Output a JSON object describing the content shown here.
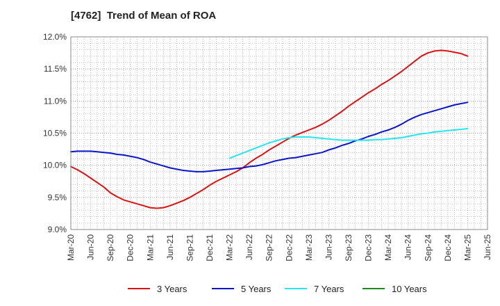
{
  "title": "[4762]  Trend of Mean of ROA",
  "chart_data": {
    "type": "line",
    "title": "[4762]  Trend of Mean of ROA",
    "ylim": [
      9.0,
      12.0
    ],
    "y_ticks": [
      "9.0%",
      "9.5%",
      "10.0%",
      "10.5%",
      "11.0%",
      "11.5%",
      "12.0%"
    ],
    "x_ticks": [
      "Mar-20",
      "Jun-20",
      "Sep-20",
      "Dec-20",
      "Mar-21",
      "Jun-21",
      "Sep-21",
      "Dec-21",
      "Mar-22",
      "Jun-22",
      "Sep-22",
      "Dec-22",
      "Mar-23",
      "Jun-23",
      "Sep-23",
      "Dec-23",
      "Mar-24",
      "Jun-24",
      "Sep-24",
      "Dec-24",
      "Mar-25",
      "Jun-25"
    ],
    "grid": true,
    "legend_position": "bottom",
    "series": [
      {
        "name": "3 Years",
        "color": "#dd1111",
        "points": [
          [
            "Mar-20",
            9.98
          ],
          [
            "Apr-20",
            9.93
          ],
          [
            "May-20",
            9.87
          ],
          [
            "Jun-20",
            9.8
          ],
          [
            "Jul-20",
            9.73
          ],
          [
            "Aug-20",
            9.66
          ],
          [
            "Sep-20",
            9.57
          ],
          [
            "Oct-20",
            9.51
          ],
          [
            "Nov-20",
            9.46
          ],
          [
            "Dec-20",
            9.43
          ],
          [
            "Jan-21",
            9.4
          ],
          [
            "Feb-21",
            9.37
          ],
          [
            "Mar-21",
            9.34
          ],
          [
            "Apr-21",
            9.33
          ],
          [
            "May-21",
            9.34
          ],
          [
            "Jun-21",
            9.37
          ],
          [
            "Jul-21",
            9.41
          ],
          [
            "Aug-21",
            9.45
          ],
          [
            "Sep-21",
            9.5
          ],
          [
            "Oct-21",
            9.56
          ],
          [
            "Nov-21",
            9.62
          ],
          [
            "Dec-21",
            9.69
          ],
          [
            "Jan-22",
            9.75
          ],
          [
            "Feb-22",
            9.8
          ],
          [
            "Mar-22",
            9.85
          ],
          [
            "Apr-22",
            9.9
          ],
          [
            "May-22",
            9.96
          ],
          [
            "Jun-22",
            10.04
          ],
          [
            "Jul-22",
            10.11
          ],
          [
            "Aug-22",
            10.17
          ],
          [
            "Sep-22",
            10.24
          ],
          [
            "Oct-22",
            10.3
          ],
          [
            "Nov-22",
            10.36
          ],
          [
            "Dec-22",
            10.42
          ],
          [
            "Jan-23",
            10.47
          ],
          [
            "Feb-23",
            10.51
          ],
          [
            "Mar-23",
            10.55
          ],
          [
            "Apr-23",
            10.59
          ],
          [
            "May-23",
            10.64
          ],
          [
            "Jun-23",
            10.7
          ],
          [
            "Jul-23",
            10.77
          ],
          [
            "Aug-23",
            10.84
          ],
          [
            "Sep-23",
            10.92
          ],
          [
            "Oct-23",
            10.99
          ],
          [
            "Nov-23",
            11.06
          ],
          [
            "Dec-23",
            11.13
          ],
          [
            "Jan-24",
            11.19
          ],
          [
            "Feb-24",
            11.26
          ],
          [
            "Mar-24",
            11.32
          ],
          [
            "Apr-24",
            11.39
          ],
          [
            "May-24",
            11.46
          ],
          [
            "Jun-24",
            11.54
          ],
          [
            "Jul-24",
            11.62
          ],
          [
            "Aug-24",
            11.7
          ],
          [
            "Sep-24",
            11.75
          ],
          [
            "Oct-24",
            11.78
          ],
          [
            "Nov-24",
            11.79
          ],
          [
            "Dec-24",
            11.78
          ],
          [
            "Jan-25",
            11.76
          ],
          [
            "Feb-25",
            11.74
          ],
          [
            "Mar-25",
            11.7
          ]
        ]
      },
      {
        "name": "5 Years",
        "color": "#0a14c8",
        "points": [
          [
            "Mar-20",
            10.21
          ],
          [
            "Apr-20",
            10.22
          ],
          [
            "May-20",
            10.22
          ],
          [
            "Jun-20",
            10.22
          ],
          [
            "Jul-20",
            10.21
          ],
          [
            "Aug-20",
            10.2
          ],
          [
            "Sep-20",
            10.19
          ],
          [
            "Oct-20",
            10.17
          ],
          [
            "Nov-20",
            10.16
          ],
          [
            "Dec-20",
            10.14
          ],
          [
            "Jan-21",
            10.12
          ],
          [
            "Feb-21",
            10.09
          ],
          [
            "Mar-21",
            10.05
          ],
          [
            "Apr-21",
            10.02
          ],
          [
            "May-21",
            9.99
          ],
          [
            "Jun-21",
            9.96
          ],
          [
            "Jul-21",
            9.94
          ],
          [
            "Aug-21",
            9.92
          ],
          [
            "Sep-21",
            9.91
          ],
          [
            "Oct-21",
            9.9
          ],
          [
            "Nov-21",
            9.9
          ],
          [
            "Dec-21",
            9.91
          ],
          [
            "Jan-22",
            9.92
          ],
          [
            "Feb-22",
            9.93
          ],
          [
            "Mar-22",
            9.94
          ],
          [
            "Apr-22",
            9.95
          ],
          [
            "May-22",
            9.96
          ],
          [
            "Jun-22",
            9.98
          ],
          [
            "Jul-22",
            9.99
          ],
          [
            "Aug-22",
            10.01
          ],
          [
            "Sep-22",
            10.04
          ],
          [
            "Oct-22",
            10.07
          ],
          [
            "Nov-22",
            10.09
          ],
          [
            "Dec-22",
            10.11
          ],
          [
            "Jan-23",
            10.12
          ],
          [
            "Feb-23",
            10.14
          ],
          [
            "Mar-23",
            10.16
          ],
          [
            "Apr-23",
            10.18
          ],
          [
            "May-23",
            10.2
          ],
          [
            "Jun-23",
            10.24
          ],
          [
            "Jul-23",
            10.27
          ],
          [
            "Aug-23",
            10.31
          ],
          [
            "Sep-23",
            10.34
          ],
          [
            "Oct-23",
            10.38
          ],
          [
            "Nov-23",
            10.41
          ],
          [
            "Dec-23",
            10.45
          ],
          [
            "Jan-24",
            10.48
          ],
          [
            "Feb-24",
            10.52
          ],
          [
            "Mar-24",
            10.55
          ],
          [
            "Apr-24",
            10.59
          ],
          [
            "May-24",
            10.64
          ],
          [
            "Jun-24",
            10.7
          ],
          [
            "Jul-24",
            10.75
          ],
          [
            "Aug-24",
            10.79
          ],
          [
            "Sep-24",
            10.82
          ],
          [
            "Oct-24",
            10.85
          ],
          [
            "Nov-24",
            10.88
          ],
          [
            "Dec-24",
            10.91
          ],
          [
            "Jan-25",
            10.94
          ],
          [
            "Feb-25",
            10.96
          ],
          [
            "Mar-25",
            10.98
          ]
        ]
      },
      {
        "name": "7 Years",
        "color": "#22e6f0",
        "points": [
          [
            "Mar-22",
            10.11
          ],
          [
            "Apr-22",
            10.15
          ],
          [
            "May-22",
            10.19
          ],
          [
            "Jun-22",
            10.23
          ],
          [
            "Jul-22",
            10.27
          ],
          [
            "Aug-22",
            10.31
          ],
          [
            "Sep-22",
            10.35
          ],
          [
            "Oct-22",
            10.38
          ],
          [
            "Nov-22",
            10.41
          ],
          [
            "Dec-22",
            10.43
          ],
          [
            "Jan-23",
            10.44
          ],
          [
            "Feb-23",
            10.44
          ],
          [
            "Mar-23",
            10.44
          ],
          [
            "Apr-23",
            10.43
          ],
          [
            "May-23",
            10.42
          ],
          [
            "Jun-23",
            10.41
          ],
          [
            "Jul-23",
            10.4
          ],
          [
            "Aug-23",
            10.39
          ],
          [
            "Sep-23",
            10.39
          ],
          [
            "Oct-23",
            10.39
          ],
          [
            "Nov-23",
            10.39
          ],
          [
            "Dec-23",
            10.39
          ],
          [
            "Jan-24",
            10.4
          ],
          [
            "Feb-24",
            10.4
          ],
          [
            "Mar-24",
            10.41
          ],
          [
            "Apr-24",
            10.42
          ],
          [
            "May-24",
            10.43
          ],
          [
            "Jun-24",
            10.45
          ],
          [
            "Jul-24",
            10.47
          ],
          [
            "Aug-24",
            10.49
          ],
          [
            "Sep-24",
            10.5
          ],
          [
            "Oct-24",
            10.52
          ],
          [
            "Nov-24",
            10.53
          ],
          [
            "Dec-24",
            10.54
          ],
          [
            "Jan-25",
            10.55
          ],
          [
            "Feb-25",
            10.56
          ],
          [
            "Mar-25",
            10.57
          ]
        ]
      },
      {
        "name": "10 Years",
        "color": "#1a8a1a",
        "points": []
      }
    ]
  }
}
